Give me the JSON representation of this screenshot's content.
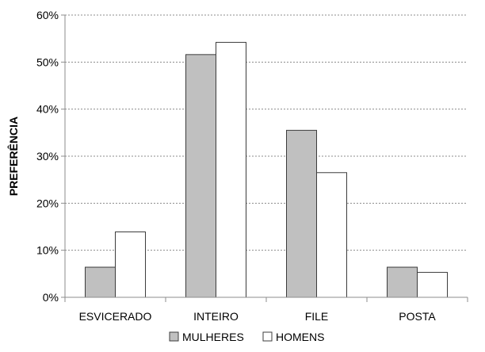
{
  "chart_data": {
    "type": "bar",
    "title": "",
    "xlabel": "",
    "ylabel": "PREFERÊNCIA",
    "categories": [
      "ESVICERADO",
      "INTEIRO",
      "FILE",
      "POSTA"
    ],
    "series": [
      {
        "name": "MULHERES",
        "values": [
          6.4,
          51.6,
          35.5,
          6.4
        ],
        "color": "#c0c0c0"
      },
      {
        "name": "HOMENS",
        "values": [
          13.9,
          54.2,
          26.5,
          5.3
        ],
        "color": "#ffffff"
      }
    ],
    "ylim": [
      0,
      60
    ],
    "yticks": [
      "0%",
      "10%",
      "20%",
      "30%",
      "40%",
      "50%",
      "60%"
    ],
    "y_unit": "%",
    "grid": "horizontal dashed",
    "legend_position": "bottom"
  }
}
